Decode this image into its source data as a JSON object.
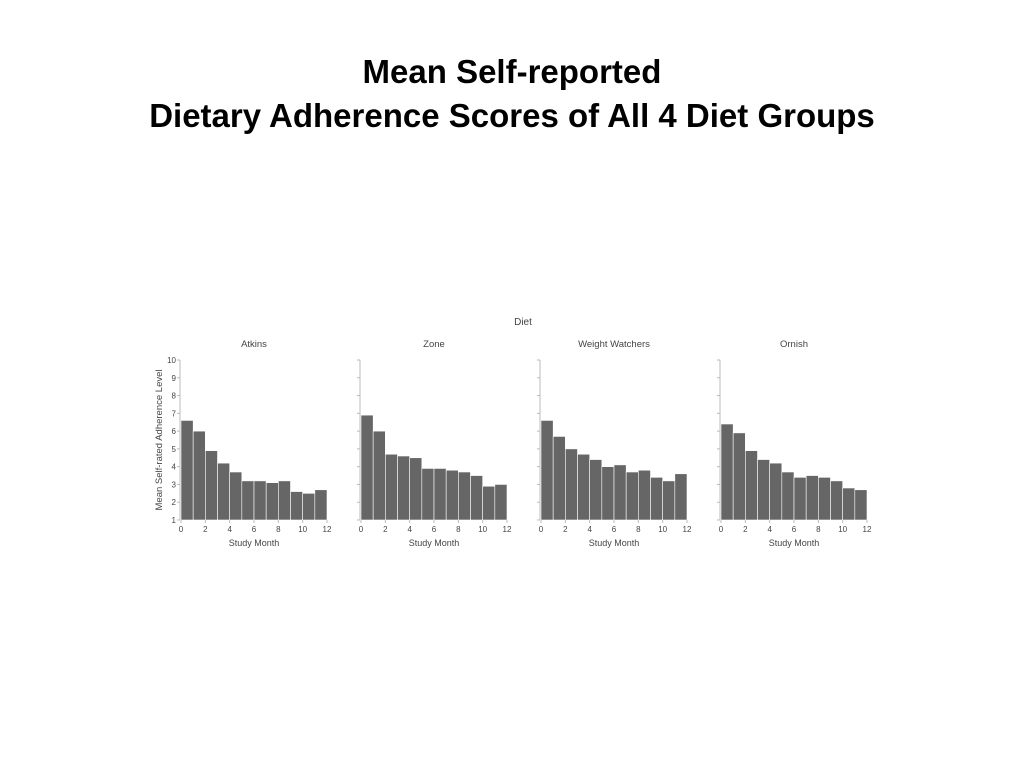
{
  "title_line1": "Mean Self-reported",
  "title_line2": "Dietary Adherence Scores of All 4 Diet Groups",
  "chart_data": {
    "type": "bar",
    "facet_header": "Diet",
    "ylabel": "Mean Self-rated Adherence Level",
    "xlabel": "Study Month",
    "ylim": [
      1,
      10
    ],
    "yticks": [
      1,
      2,
      3,
      4,
      5,
      6,
      7,
      8,
      9,
      10
    ],
    "xlim": [
      0,
      12
    ],
    "xticks": [
      0,
      2,
      4,
      6,
      8,
      10,
      12
    ],
    "x": [
      0,
      1,
      2,
      3,
      4,
      5,
      6,
      7,
      8,
      9,
      10,
      11
    ],
    "bar_color": "#666666",
    "panels": [
      {
        "name": "Atkins",
        "values": [
          6.6,
          6.0,
          4.9,
          4.2,
          3.7,
          3.2,
          3.2,
          3.1,
          3.2,
          2.6,
          2.5,
          2.7
        ]
      },
      {
        "name": "Zone",
        "values": [
          6.9,
          6.0,
          4.7,
          4.6,
          4.5,
          3.9,
          3.9,
          3.8,
          3.7,
          3.5,
          2.9,
          3.0
        ]
      },
      {
        "name": "Weight Watchers",
        "values": [
          6.6,
          5.7,
          5.0,
          4.7,
          4.4,
          4.0,
          4.1,
          3.7,
          3.8,
          3.4,
          3.2,
          3.6
        ]
      },
      {
        "name": "Ornish",
        "values": [
          6.4,
          5.9,
          4.9,
          4.4,
          4.2,
          3.7,
          3.4,
          3.5,
          3.4,
          3.2,
          2.8,
          2.7
        ]
      }
    ]
  }
}
